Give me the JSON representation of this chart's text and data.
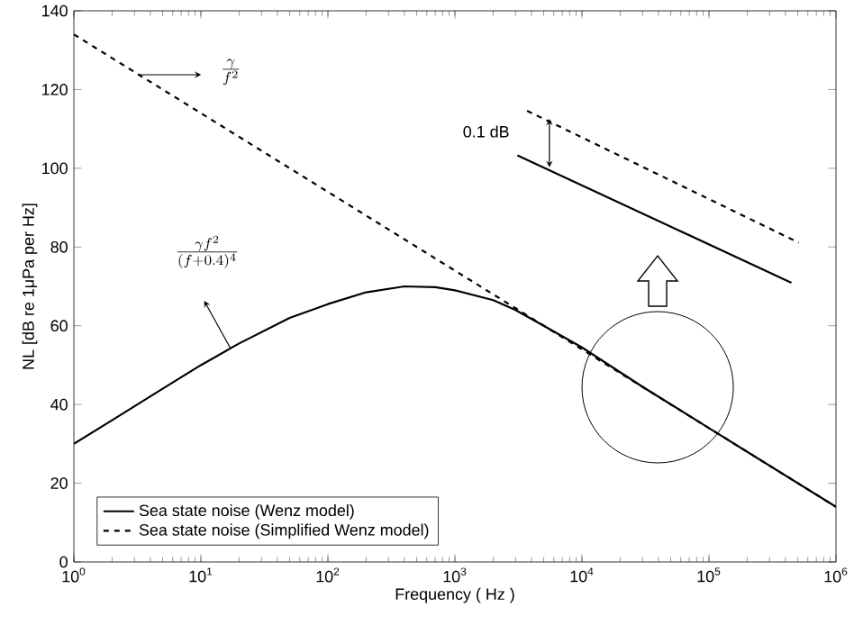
{
  "chart_data": {
    "type": "line",
    "xlabel": "Frequency ( Hz )",
    "ylabel": "NL [dB re 1μPa per Hz]",
    "x": [
      1,
      2,
      5,
      10,
      20,
      50,
      100,
      200,
      400,
      700,
      1000,
      2000,
      3000,
      5000,
      10000,
      30000,
      100000,
      1000000
    ],
    "series": [
      {
        "name": "Sea state noise (Wenz model)",
        "color": "#000000",
        "line_style": "solid",
        "values": [
          30,
          36,
          44,
          50,
          55.5,
          62,
          65.5,
          68.5,
          70,
          69.8,
          69,
          66.5,
          64,
          60,
          54.5,
          44.5,
          34,
          14
        ]
      },
      {
        "name": "Sea state noise (Simplified Wenz model)",
        "color": "#000000",
        "line_style": "dashed",
        "x": [
          1,
          1000000
        ],
        "values": [
          134,
          14
        ]
      },
      {
        "color": "#000000",
        "line_style": "solid",
        "x": [
          3100,
          446000
        ],
        "values": [
          103.3,
          70.9
        ]
      },
      {
        "color": "#000000",
        "line_style": "dashed",
        "x": [
          3700,
          510000
        ],
        "values": [
          114.6,
          81.1
        ]
      }
    ],
    "annotations": [
      "\\frac{\\gamma}{f^{2}}",
      "\\frac{\\gamma f^{2}}{(f+0.4)^{4}}",
      "0.1 dB"
    ],
    "log": "x",
    "xlim": [
      1,
      1000000
    ],
    "xticks": [
      {
        "value": 1,
        "label": "10$^{0}$"
      },
      {
        "value": 10,
        "label": "10$^{1}$"
      },
      {
        "value": 100,
        "label": "10$^{2}$"
      },
      {
        "value": 1000,
        "label": "10$^{3}$"
      },
      {
        "value": 10000,
        "label": "10$^{4}$"
      },
      {
        "value": 100000,
        "label": "10$^{5}$"
      },
      {
        "value": 1000000,
        "label": "10$^{6}$"
      }
    ],
    "ylim": [
      0,
      140
    ],
    "yticks": [
      0,
      20,
      40,
      60,
      80,
      100,
      120,
      140
    ],
    "grid": false,
    "legend": "bottom left"
  }
}
